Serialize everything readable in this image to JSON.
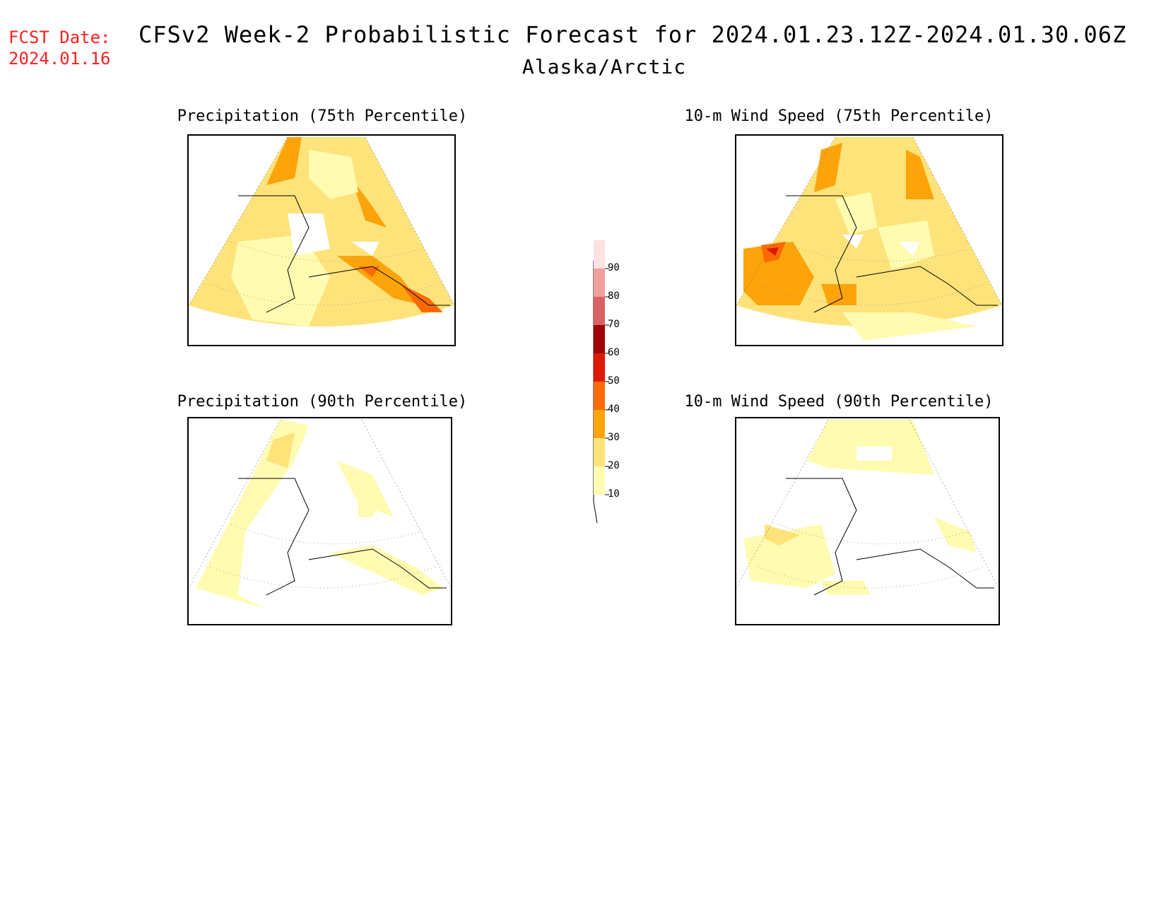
{
  "header": {
    "fcst_label": "FCST Date:",
    "fcst_date": "2024.01.16",
    "title": "CFSv2 Week-2 Probabilistic Forecast for 2024.01.23.12Z-2024.01.30.06Z",
    "subtitle": "Alaska/Arctic"
  },
  "panels": [
    {
      "title": "Precipitation (75th Percentile)"
    },
    {
      "title": "10-m Wind Speed (75th Percentile)"
    },
    {
      "title": "Precipitation (90th Percentile)"
    },
    {
      "title": "10-m Wind Speed (90th Percentile)"
    }
  ],
  "colorbar": {
    "levels": [
      "10",
      "20",
      "30",
      "40",
      "50",
      "60",
      "70",
      "80",
      "90"
    ],
    "colors": {
      "10": "#fffbb0",
      "20": "#fde37a",
      "30": "#fca40a",
      "40": "#fd6a03",
      "50": "#dd1903",
      "60": "#a00606",
      "70": "#d96364",
      "80": "#f19f9f",
      "90": "#fde1e1"
    }
  }
}
